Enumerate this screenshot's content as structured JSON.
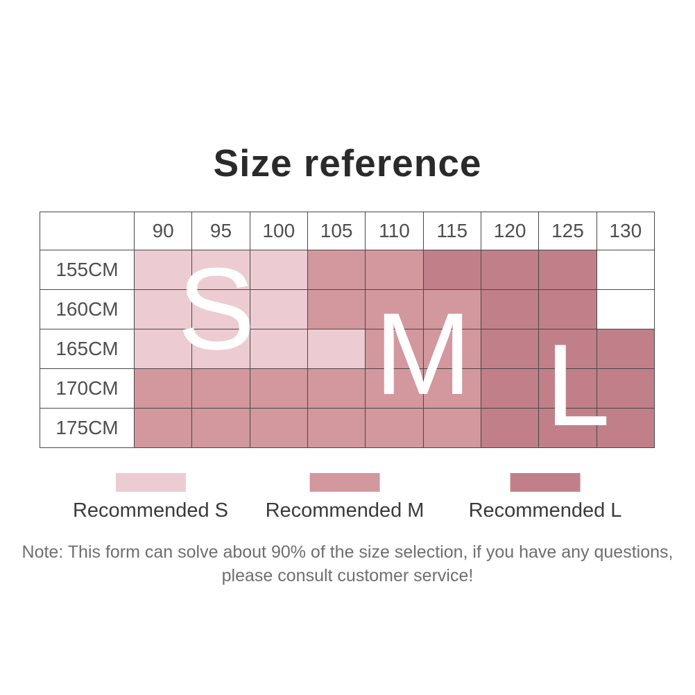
{
  "chart_data": {
    "type": "heatmap",
    "title": "Size reference",
    "x_labels": [
      "90",
      "95",
      "100",
      "105",
      "110",
      "115",
      "120",
      "125",
      "130"
    ],
    "y_labels": [
      "155CM",
      "160CM",
      "165CM",
      "170CM",
      "175CM"
    ],
    "cell_sizes": [
      [
        "S",
        "S",
        "S",
        "M",
        "M",
        "L",
        "L",
        "L",
        ""
      ],
      [
        "S",
        "S",
        "S",
        "M",
        "M",
        "M",
        "L",
        "L",
        ""
      ],
      [
        "S",
        "S",
        "S",
        "S",
        "M",
        "M",
        "L",
        "L",
        "L"
      ],
      [
        "M",
        "M",
        "M",
        "M",
        "M",
        "M",
        "L",
        "L",
        "L"
      ],
      [
        "M",
        "M",
        "M",
        "M",
        "M",
        "M",
        "L",
        "L",
        "L"
      ]
    ],
    "cell_colors": {
      "S": "#ecccd2",
      "M": "#d2989e",
      "L": "#c18089",
      "": "#ffffff"
    },
    "overlay_letters": [
      {
        "text": "S"
      },
      {
        "text": "M"
      },
      {
        "text": "L"
      }
    ],
    "legend": [
      {
        "label": "Recommended S",
        "size_key": "S"
      },
      {
        "label": "Recommended M",
        "size_key": "M"
      },
      {
        "label": "Recommended L",
        "size_key": "L"
      }
    ],
    "legend_position": "bottom",
    "grid": true
  },
  "note": {
    "line1": "Note: This form can solve about 90% of the size selection, if you have any questions,",
    "line2": "please consult customer service!"
  }
}
